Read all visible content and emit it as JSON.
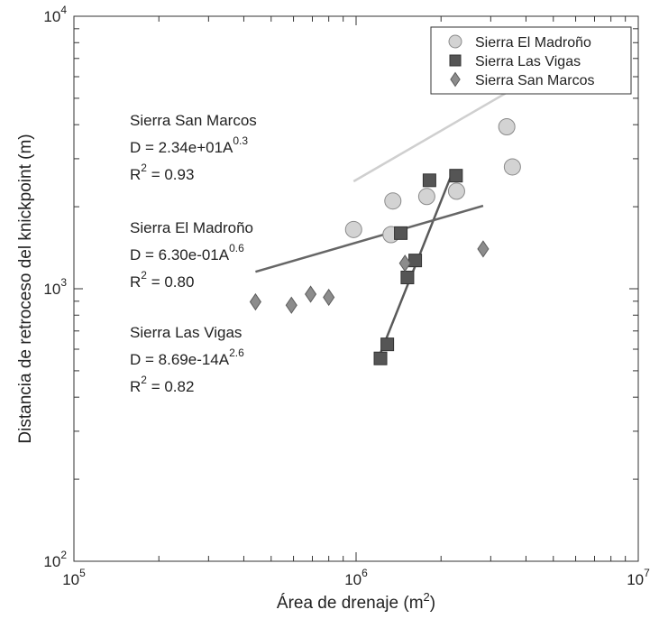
{
  "chart_data": {
    "type": "scatter",
    "xscale": "log",
    "yscale": "log",
    "xlim": [
      100000,
      10000000
    ],
    "ylim": [
      100,
      10000
    ],
    "xlabel": {
      "text": "Área de drenaje (m",
      "sup": "2",
      "close": ")"
    },
    "ylabel": "Distancia de retroceso del knickpoint (m)",
    "xticks": [
      {
        "value": 100000,
        "base": "10",
        "exp": "5"
      },
      {
        "value": 1000000,
        "base": "10",
        "exp": "6"
      },
      {
        "value": 10000000,
        "base": "10",
        "exp": "7"
      }
    ],
    "yticks": [
      {
        "value": 100,
        "base": "10",
        "exp": "2"
      },
      {
        "value": 1000,
        "base": "10",
        "exp": "3"
      },
      {
        "value": 10000,
        "base": "10",
        "exp": "4"
      }
    ],
    "legend_position": "top-right",
    "series": [
      {
        "name": "Sierra El Madroño",
        "marker": "circle",
        "fill": "#d3d3d3",
        "stroke": "#8a8a8a",
        "line_color": "#cfcfcf",
        "points": [
          [
            980000,
            1650
          ],
          [
            1330000,
            1580
          ],
          [
            1350000,
            2100
          ],
          [
            1780000,
            2180
          ],
          [
            2270000,
            2280
          ],
          [
            3420000,
            3930
          ],
          [
            3580000,
            2800
          ]
        ],
        "fit": {
          "coef": 0.63,
          "exp": 0.6,
          "x_range": [
            980000,
            3550000
          ]
        },
        "annotation": {
          "name": "Sierra El Madroño",
          "eq": "D = 6.30e-01A",
          "eq_exp": "0.6",
          "r2_label": "R",
          "r2_sup": "2",
          "r2_value": " = 0.80"
        }
      },
      {
        "name": "Sierra Las Vigas",
        "marker": "square",
        "fill": "#555555",
        "stroke": "#333333",
        "line_color": "#5a5a5a",
        "points": [
          [
            1220000,
            555
          ],
          [
            1290000,
            625
          ],
          [
            1440000,
            1600
          ],
          [
            1520000,
            1100
          ],
          [
            1620000,
            1270
          ],
          [
            1820000,
            2500
          ],
          [
            2260000,
            2600
          ]
        ],
        "fit": {
          "coef": 8.69e-14,
          "exp": 2.6,
          "x_range": [
            1200000,
            2180000
          ]
        },
        "annotation": {
          "name": "Sierra Las Vigas",
          "eq": "D = 8.69e-14A",
          "eq_exp": "2.6",
          "r2_label": "R",
          "r2_sup": "2",
          "r2_value": " = 0.82"
        }
      },
      {
        "name": "Sierra San Marcos",
        "marker": "diamond",
        "fill": "#8c8c8c",
        "stroke": "#5c5c5c",
        "line_color": "#666666",
        "points": [
          [
            440000,
            895
          ],
          [
            590000,
            870
          ],
          [
            690000,
            955
          ],
          [
            800000,
            930
          ],
          [
            1490000,
            1240
          ],
          [
            2820000,
            1400
          ]
        ],
        "fit": {
          "coef": 23.4,
          "exp": 0.3,
          "x_range": [
            440000,
            2820000
          ]
        },
        "annotation": {
          "name": "Sierra San Marcos",
          "eq": "D = 2.34e+01A",
          "eq_exp": "0.3",
          "r2_label": "R",
          "r2_sup": "2",
          "r2_value": " = 0.93"
        }
      }
    ],
    "annotation_order": [
      2,
      0,
      1
    ]
  }
}
